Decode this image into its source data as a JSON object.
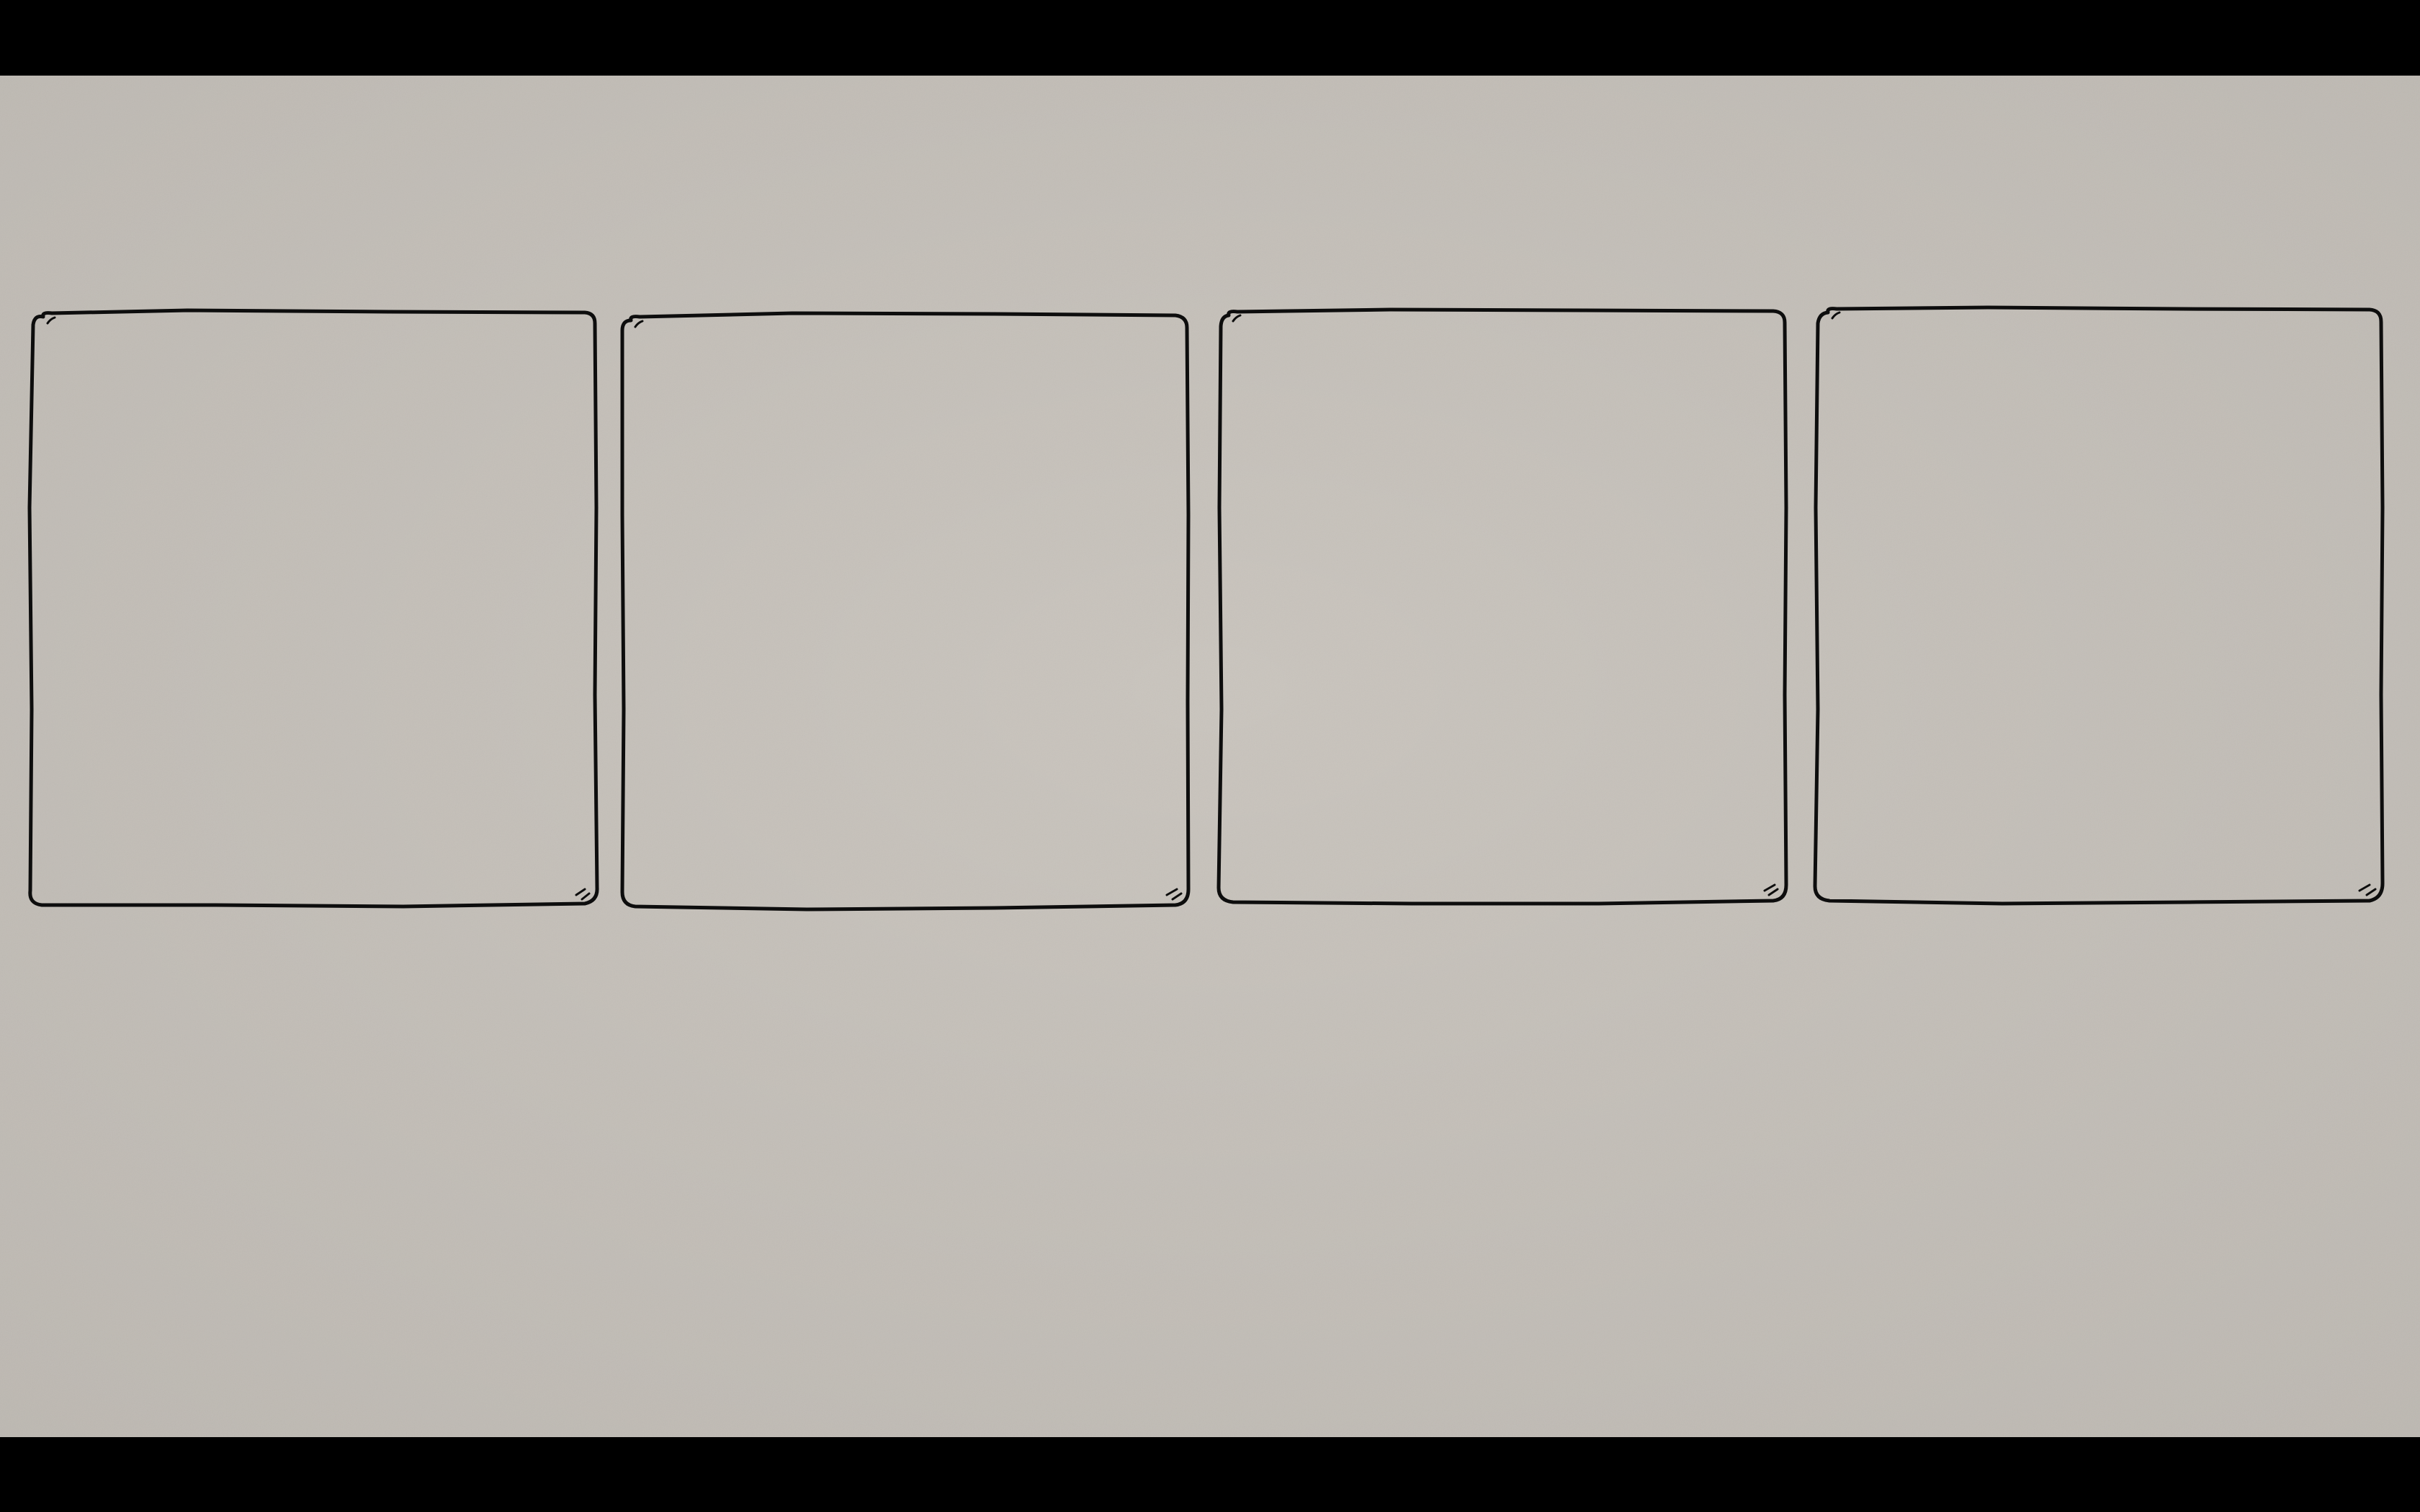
{
  "scene": {
    "paper_color": "#c9c4bd",
    "paper_shade_color": "#bfbab3",
    "ink_color": "#0d0d0d",
    "letterbox_color": "#000000",
    "panel_count": 4
  }
}
